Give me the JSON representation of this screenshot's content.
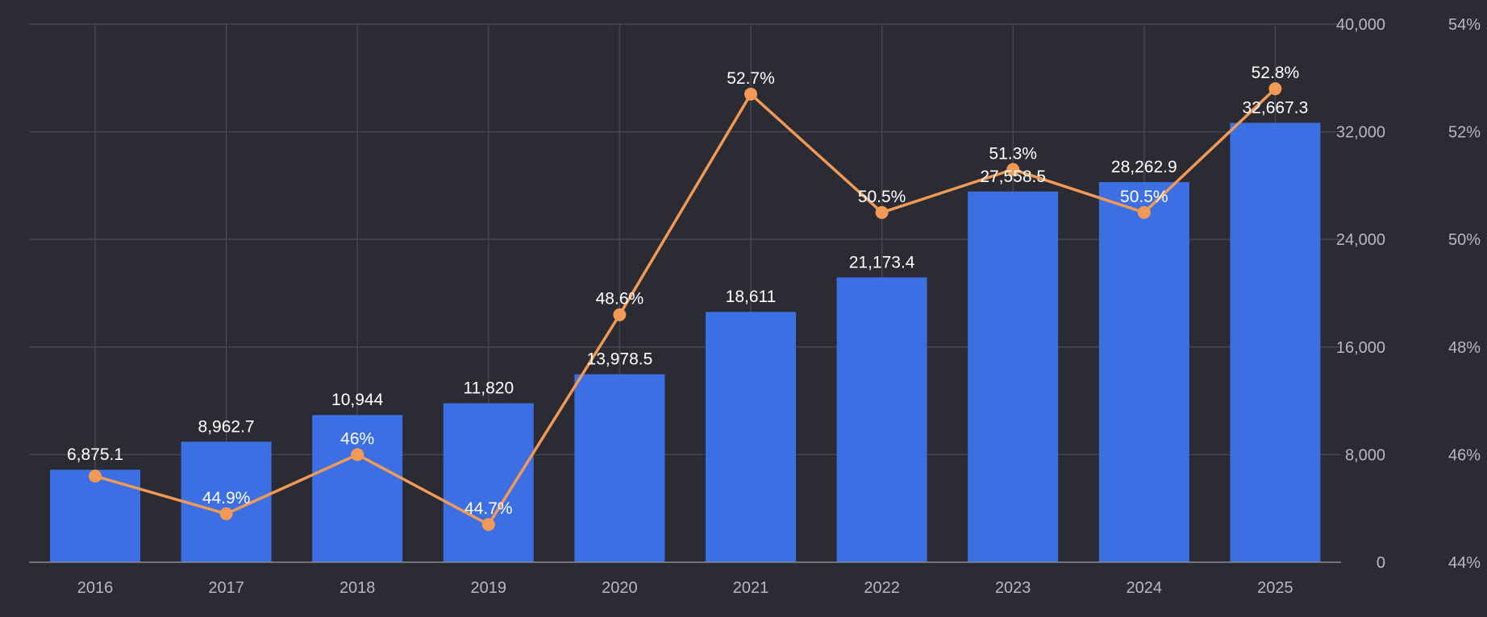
{
  "chart_data": {
    "type": "bar",
    "title": "",
    "xlabel": "",
    "ylabel": "",
    "categories": [
      "2016",
      "2017",
      "2018",
      "2019",
      "2020",
      "2021",
      "2022",
      "2023",
      "2024",
      "2025"
    ],
    "series": [
      {
        "type": "bar",
        "axis": "left",
        "values": [
          6875.1,
          8962.7,
          10944,
          11820,
          13978.5,
          18611,
          21173.4,
          27558.5,
          28262.9,
          32667.3
        ],
        "labels": [
          "6,875.1",
          "8,962.7",
          "10,944",
          "11,820",
          "13,978.5",
          "18,611",
          "21,173.4",
          "27,558.5",
          "28,262.9",
          "32,667.3"
        ],
        "color": "#3b6fe3"
      },
      {
        "type": "line",
        "axis": "right",
        "values": [
          45.6,
          44.9,
          46,
          44.7,
          48.6,
          52.7,
          50.5,
          51.3,
          50.5,
          52.8
        ],
        "labels": [
          "",
          "44.9%",
          "46%",
          "44.7%",
          "48.6%",
          "52.7%",
          "50.5%",
          "51.3%",
          "50.5%",
          "52.8%"
        ],
        "color": "#f29a55"
      }
    ],
    "y_left": {
      "range": [
        0,
        40000
      ],
      "ticks": [
        0,
        8000,
        16000,
        24000,
        32000,
        40000
      ],
      "tick_labels": [
        "0",
        "8,000",
        "16,000",
        "24,000",
        "32,000",
        "40,000"
      ]
    },
    "y_right": {
      "range": [
        44,
        54
      ],
      "ticks": [
        44,
        46,
        48,
        50,
        52,
        54
      ],
      "tick_labels": [
        "44%",
        "46%",
        "48%",
        "50%",
        "52%",
        "54%"
      ]
    },
    "grid": true,
    "legend": "none"
  },
  "colors": {
    "background": "#2b2b33",
    "bar": "#3b6fe3",
    "line": "#f29a55",
    "grid": "#4a4a55"
  }
}
